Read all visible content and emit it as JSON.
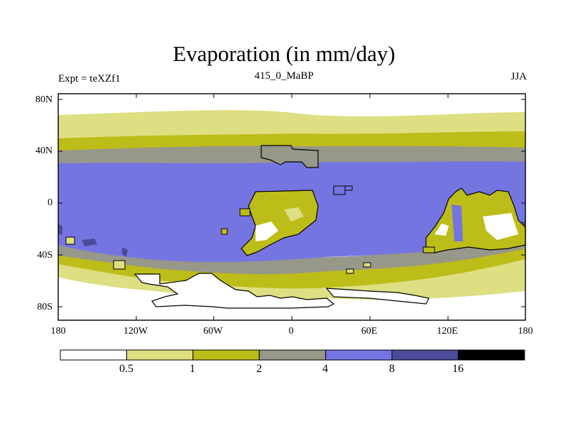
{
  "title": "Evaporation (in mm/day)",
  "labels": {
    "left": "Expt = teXZf1",
    "center": "415_0_MaBP",
    "right": "JJA"
  },
  "y_ticks": [
    "80N",
    "40N",
    "0",
    "40S",
    "80S"
  ],
  "x_ticks": [
    "180",
    "120W",
    "60W",
    "0",
    "60E",
    "120E",
    "180"
  ],
  "colorbar": {
    "labels": [
      "0.5",
      "1",
      "2",
      "4",
      "8",
      "16"
    ],
    "colors": [
      "#ffffff",
      "#dede82",
      "#bdbd1a",
      "#97978a",
      "#7575e2",
      "#4b4b9a",
      "#000000"
    ]
  }
}
